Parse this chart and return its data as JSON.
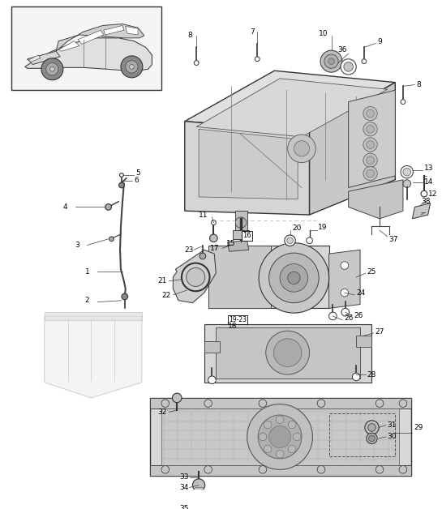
{
  "background": "#ffffff",
  "line_col": "#3a3a3a",
  "light_fill": "#e8e8e8",
  "mid_fill": "#d0d0d0",
  "dark_fill": "#b0b0b0",
  "label_font": 6.5,
  "fig_w": 5.45,
  "fig_h": 6.28,
  "dpi": 100
}
